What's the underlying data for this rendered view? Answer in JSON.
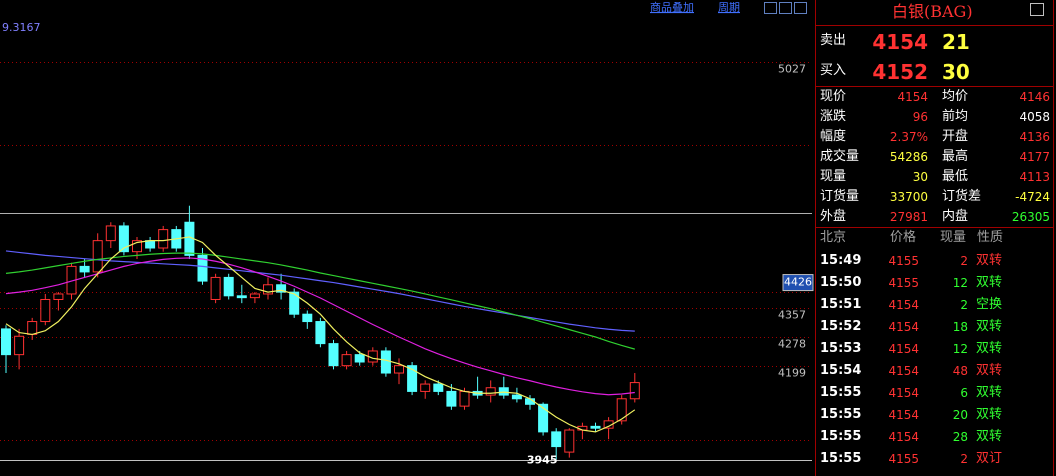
{
  "chart_data": {
    "type": "candlestick",
    "open": [
      4300,
      4230,
      4285,
      4320,
      4380,
      4395,
      4470,
      4455,
      4540,
      4580,
      4510,
      4540,
      4520,
      4570,
      4590,
      4500,
      4380,
      4440,
      4390,
      4385,
      4395,
      4420,
      4400,
      4340,
      4320,
      4260,
      4200,
      4230,
      4210,
      4240,
      4180,
      4200,
      4130,
      4150,
      4130,
      4090,
      4130,
      4120,
      4140,
      4120,
      4110,
      4095,
      4020,
      3965,
      4025,
      4035,
      4030,
      4050,
      4110
    ],
    "high": [
      4310,
      4300,
      4330,
      4395,
      4400,
      4480,
      4490,
      4560,
      4590,
      4590,
      4550,
      4550,
      4580,
      4580,
      4635,
      4520,
      4450,
      4450,
      4420,
      4400,
      4440,
      4450,
      4410,
      4350,
      4330,
      4270,
      4240,
      4240,
      4250,
      4250,
      4220,
      4210,
      4160,
      4160,
      4150,
      4140,
      4170,
      4160,
      4170,
      4140,
      4120,
      4100,
      4030,
      4030,
      4045,
      4045,
      4060,
      4120,
      4180
    ],
    "low": [
      4180,
      4190,
      4270,
      4310,
      4350,
      4380,
      4440,
      4440,
      4520,
      4500,
      4490,
      4510,
      4510,
      4510,
      4490,
      4420,
      4370,
      4380,
      4370,
      4370,
      4380,
      4380,
      4330,
      4300,
      4250,
      4190,
      4190,
      4200,
      4200,
      4170,
      4150,
      4120,
      4110,
      4120,
      4080,
      4080,
      4110,
      4100,
      4110,
      4100,
      4080,
      4010,
      3945,
      3950,
      4000,
      4020,
      4000,
      4040,
      4100
    ],
    "close": [
      4230,
      4280,
      4320,
      4380,
      4395,
      4470,
      4455,
      4540,
      4580,
      4510,
      4540,
      4520,
      4570,
      4520,
      4500,
      4430,
      4440,
      4390,
      4385,
      4395,
      4420,
      4400,
      4340,
      4320,
      4260,
      4200,
      4230,
      4210,
      4240,
      4180,
      4200,
      4130,
      4150,
      4130,
      4090,
      4130,
      4120,
      4140,
      4120,
      4110,
      4095,
      4020,
      3980,
      4025,
      4035,
      4030,
      4050,
      4110,
      4154
    ],
    "up_color": "#ff3232",
    "down_color": "#54ffff",
    "series": [
      {
        "color": "#6060ff",
        "values": [
          4512,
          4508,
          4504,
          4500,
          4497,
          4494,
          4491,
          4488,
          4485,
          4483,
          4481,
          4479,
          4477,
          4475,
          4473,
          4470,
          4466,
          4462,
          4458,
          4454,
          4450,
          4446,
          4441,
          4436,
          4431,
          4426,
          4420,
          4414,
          4408,
          4402,
          4396,
          4389,
          4382,
          4375,
          4368,
          4361,
          4355,
          4349,
          4343,
          4337,
          4331,
          4325,
          4319,
          4313,
          4308,
          4303,
          4299,
          4296,
          4294
        ]
      },
      {
        "color": "#30d030",
        "values": [
          4451,
          4455,
          4460,
          4466,
          4472,
          4478,
          4484,
          4489,
          4493,
          4497,
          4500,
          4503,
          4505,
          4506,
          4506,
          4504,
          4500,
          4495,
          4490,
          4485,
          4480,
          4474,
          4467,
          4460,
          4452,
          4445,
          4438,
          4431,
          4424,
          4417,
          4410,
          4403,
          4395,
          4387,
          4379,
          4371,
          4363,
          4355,
          4346,
          4337,
          4328,
          4318,
          4308,
          4298,
          4288,
          4278,
          4266,
          4255,
          4245
        ]
      },
      {
        "color": "#e020e0",
        "values": [
          4396,
          4400,
          4405,
          4412,
          4420,
          4430,
          4440,
          4450,
          4460,
          4470,
          4478,
          4484,
          4489,
          4492,
          4493,
          4490,
          4484,
          4476,
          4466,
          4455,
          4443,
          4430,
          4416,
          4400,
          4384,
          4366,
          4348,
          4330,
          4312,
          4295,
          4278,
          4262,
          4246,
          4232,
          4219,
          4207,
          4196,
          4186,
          4176,
          4167,
          4159,
          4150,
          4142,
          4135,
          4129,
          4124,
          4121,
          4123,
          4127
        ]
      },
      {
        "color": "#f0f060",
        "values": [
          4314,
          4290,
          4285,
          4295,
          4320,
          4360,
          4410,
          4450,
          4490,
          4520,
          4535,
          4540,
          4540,
          4545,
          4550,
          4535,
          4500,
          4470,
          4440,
          4410,
          4400,
          4405,
          4395,
          4370,
          4340,
          4300,
          4265,
          4235,
          4220,
          4215,
          4205,
          4190,
          4170,
          4155,
          4140,
          4130,
          4125,
          4125,
          4128,
          4125,
          4110,
          4085,
          4060,
          4040,
          4025,
          4020,
          4035,
          4055,
          4080
        ]
      }
    ],
    "ylim": [
      3900,
      5140
    ],
    "yticks": [
      5027,
      4357,
      4278,
      4199
    ],
    "price_marker": 4426,
    "low_marker": 3945
  },
  "toolbar": {
    "indicator": "9.3167",
    "links": [
      "商品叠加",
      "周期"
    ]
  },
  "quote": {
    "title": "白银(BAG)",
    "sell": {
      "label": "卖出",
      "price": 4154,
      "volume": 21
    },
    "buy": {
      "label": "买入",
      "price": 4152,
      "volume": 30
    },
    "fields": [
      [
        {
          "label": "现价",
          "value": 4154,
          "color": "#ff3232"
        },
        {
          "label": "均价",
          "value": 4146,
          "color": "#ff3232"
        }
      ],
      [
        {
          "label": "涨跌",
          "value": 96,
          "color": "#ff3232"
        },
        {
          "label": "前均",
          "value": 4058,
          "color": "#ffffff"
        }
      ],
      [
        {
          "label": "幅度",
          "value": "2.37%",
          "color": "#ff3232"
        },
        {
          "label": "开盘",
          "value": 4136,
          "color": "#ff3232"
        }
      ],
      [
        {
          "label": "成交量",
          "value": 54286,
          "color": "#ffff40"
        },
        {
          "label": "最高",
          "value": 4177,
          "color": "#ff3232"
        }
      ],
      [
        {
          "label": "现量",
          "value": 30,
          "color": "#ffff40"
        },
        {
          "label": "最低",
          "value": 4113,
          "color": "#ff3232"
        }
      ],
      [
        {
          "label": "订货量",
          "value": 33700,
          "color": "#ffff40"
        },
        {
          "label": "订货差",
          "value": -4724,
          "color": "#ffff40"
        }
      ],
      [
        {
          "label": "外盘",
          "value": 27981,
          "color": "#ff3232"
        },
        {
          "label": "内盘",
          "value": 26305,
          "color": "#30ff30"
        }
      ]
    ]
  },
  "trades": {
    "header": [
      "北京",
      "价格",
      "现量",
      "性质"
    ],
    "rows": [
      {
        "time": "15:49",
        "price": 4155,
        "volume": 2,
        "kind": "双转",
        "color": "#ff3232"
      },
      {
        "time": "15:50",
        "price": 4155,
        "volume": 12,
        "kind": "双转",
        "color": "#30ff30"
      },
      {
        "time": "15:51",
        "price": 4154,
        "volume": 2,
        "kind": "空换",
        "color": "#30ff30"
      },
      {
        "time": "15:52",
        "price": 4154,
        "volume": 18,
        "kind": "双转",
        "color": "#30ff30"
      },
      {
        "time": "15:53",
        "price": 4154,
        "volume": 12,
        "kind": "双转",
        "color": "#30ff30"
      },
      {
        "time": "15:54",
        "price": 4154,
        "volume": 48,
        "kind": "双转",
        "color": "#ff3232"
      },
      {
        "time": "15:55",
        "price": 4154,
        "volume": 6,
        "kind": "双转",
        "color": "#30ff30"
      },
      {
        "time": "15:55",
        "price": 4154,
        "volume": 20,
        "kind": "双转",
        "color": "#30ff30"
      },
      {
        "time": "15:55",
        "price": 4154,
        "volume": 28,
        "kind": "双转",
        "color": "#30ff30"
      },
      {
        "time": "15:55",
        "price": 4155,
        "volume": 2,
        "kind": "双订",
        "color": "#ff3232"
      }
    ]
  }
}
